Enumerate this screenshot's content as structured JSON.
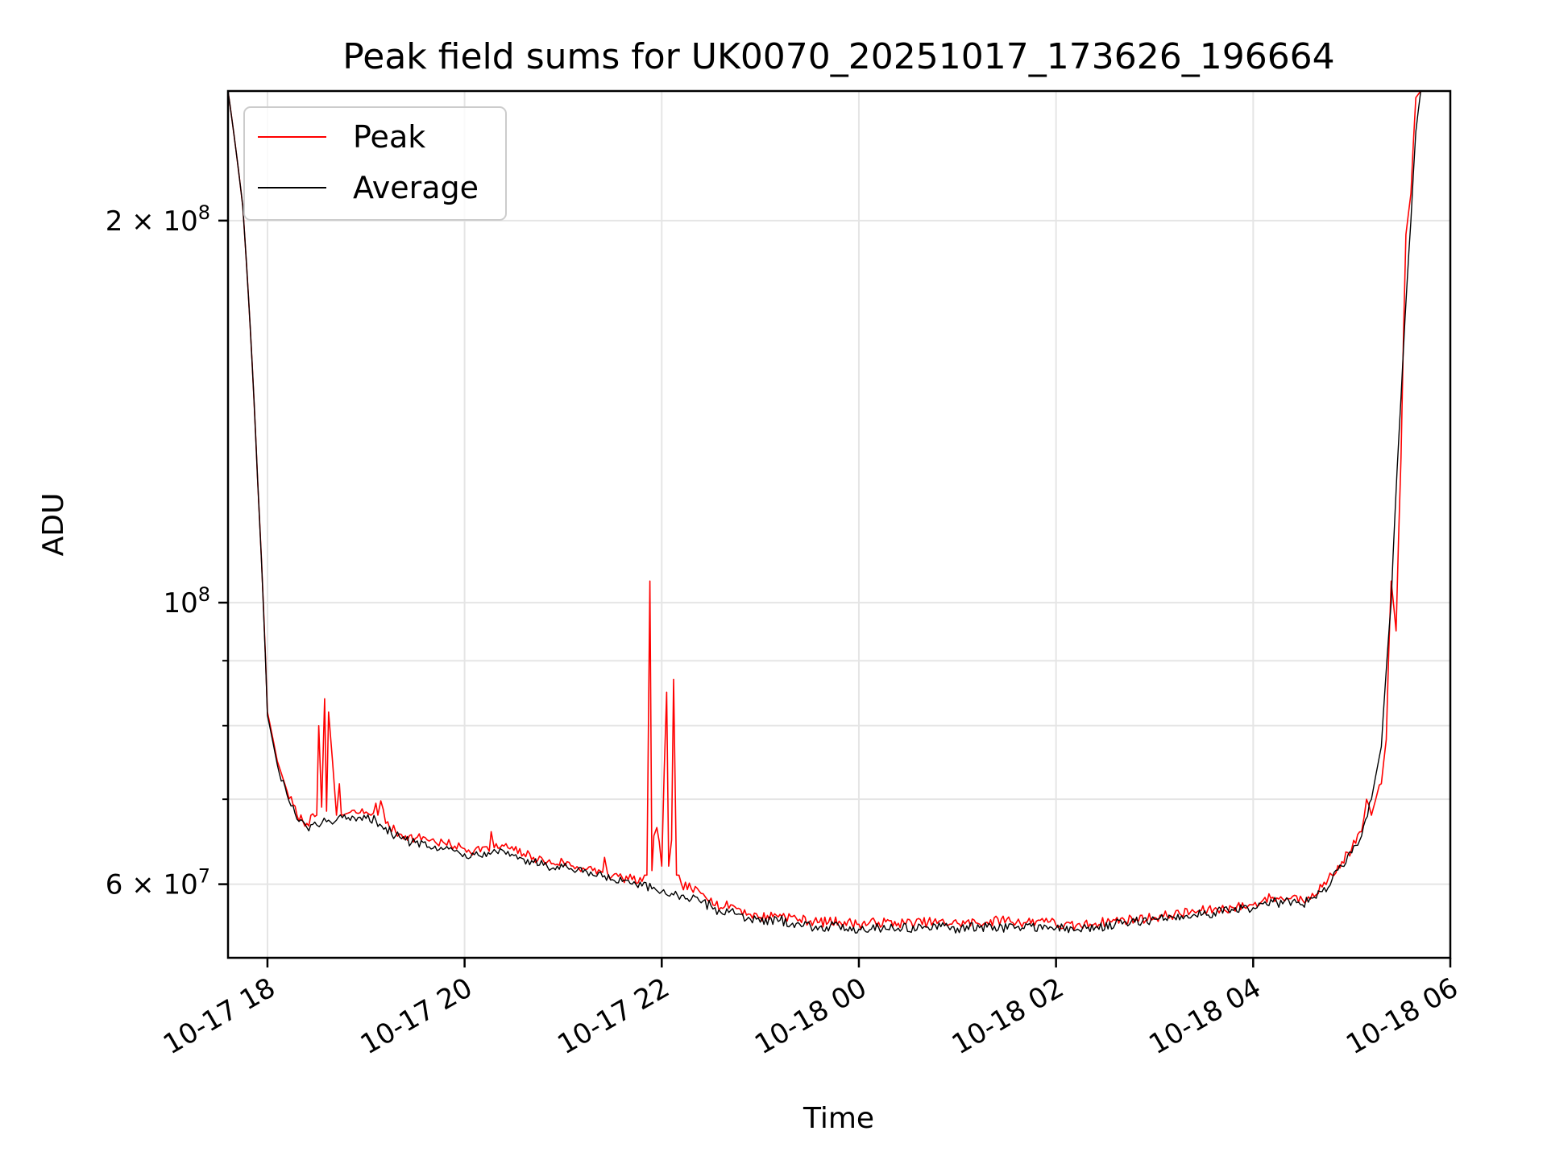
{
  "chart_data": {
    "type": "line",
    "title": "Peak field sums for UK0070_20251017_173626_196664",
    "xlabel": "Time",
    "ylabel": "ADU",
    "x_unit": "hours since 10-17 00:00",
    "xlim": [
      17.6,
      30.0
    ],
    "ylim": [
      52500000,
      253000000
    ],
    "yscale": "log",
    "grid": true,
    "legend_position": "top-left",
    "x_ticks": [
      {
        "value": 18,
        "label": "10-17 18"
      },
      {
        "value": 20,
        "label": "10-17 20"
      },
      {
        "value": 22,
        "label": "10-17 22"
      },
      {
        "value": 24,
        "label": "10-18 00"
      },
      {
        "value": 26,
        "label": "10-18 02"
      },
      {
        "value": 28,
        "label": "10-18 04"
      },
      {
        "value": 30,
        "label": "10-18 06"
      }
    ],
    "y_major_ticks": [
      {
        "value": 60000000,
        "mantissa": "6",
        "exponent": "7"
      },
      {
        "value": 100000000,
        "mantissa": "",
        "exponent": "8"
      },
      {
        "value": 200000000,
        "mantissa": "2",
        "exponent": "8"
      }
    ],
    "y_minor_ticks": [
      70000000,
      80000000,
      90000000
    ],
    "series": [
      {
        "name": "Peak",
        "color": "#ff0000",
        "x": [
          17.6,
          17.75,
          17.9,
          18.0,
          18.1,
          18.2,
          18.3,
          18.4,
          18.5,
          18.52,
          18.55,
          18.58,
          18.6,
          18.62,
          18.7,
          18.73,
          18.75,
          18.8,
          18.9,
          19.0,
          19.05,
          19.1,
          19.12,
          19.15,
          19.2,
          19.3,
          19.4,
          19.5,
          19.6,
          19.7,
          19.8,
          19.9,
          20.0,
          20.1,
          20.2,
          20.25,
          20.27,
          20.3,
          20.4,
          20.5,
          20.6,
          20.7,
          20.8,
          20.9,
          21.0,
          21.1,
          21.2,
          21.3,
          21.4,
          21.42,
          21.45,
          21.5,
          21.6,
          21.7,
          21.8,
          21.85,
          21.88,
          21.9,
          21.92,
          21.95,
          22.0,
          22.05,
          22.07,
          22.1,
          22.12,
          22.15,
          22.2,
          22.3,
          22.4,
          22.5,
          22.6,
          22.7,
          22.8,
          22.9,
          23.0,
          23.2,
          23.4,
          23.6,
          23.8,
          24.0,
          24.2,
          24.4,
          24.7,
          25.0,
          25.3,
          25.5,
          25.6,
          25.8,
          25.9,
          26.0,
          26.2,
          26.4,
          26.6,
          26.8,
          27.0,
          27.2,
          27.4,
          27.6,
          27.8,
          28.0,
          28.1,
          28.2,
          28.3,
          28.4,
          28.5,
          28.6,
          28.7,
          28.8,
          28.9,
          29.0,
          29.1,
          29.15,
          29.2,
          29.3,
          29.35,
          29.4,
          29.45,
          29.5,
          29.55,
          29.6,
          29.65,
          29.7,
          29.8,
          29.9,
          30.0
        ],
        "y": [
          253000000,
          205000000,
          125000000,
          82000000,
          75000000,
          71000000,
          68000000,
          67000000,
          68000000,
          80000000,
          69000000,
          84000000,
          68500000,
          82000000,
          68000000,
          72000000,
          68000000,
          68200000,
          68300000,
          68400000,
          68000000,
          69500000,
          68000000,
          69800000,
          67000000,
          66000000,
          65500000,
          65200000,
          65300000,
          64800000,
          64600000,
          64300000,
          64000000,
          63800000,
          64200000,
          63700000,
          66000000,
          64100000,
          64300000,
          63800000,
          63400000,
          63000000,
          62600000,
          62300000,
          62500000,
          62000000,
          61800000,
          61500000,
          61300000,
          63000000,
          61200000,
          60900000,
          60700000,
          60500000,
          60300000,
          61000000,
          104000000,
          61500000,
          65500000,
          66500000,
          62000000,
          85000000,
          62000000,
          65000000,
          87000000,
          61000000,
          60000000,
          59500000,
          59000000,
          58500000,
          57500000,
          57800000,
          57300000,
          56800000,
          56500000,
          56800000,
          56300000,
          56000000,
          56100000,
          55800000,
          56000000,
          55900000,
          56000000,
          55900000,
          56000000,
          56300000,
          56000000,
          56100000,
          56400000,
          55700000,
          55600000,
          55900000,
          56200000,
          56300000,
          56500000,
          56800000,
          57100000,
          57300000,
          57500000,
          57800000,
          58300000,
          58600000,
          58400000,
          58700000,
          58300000,
          59000000,
          59700000,
          61000000,
          62500000,
          64000000,
          66000000,
          70000000,
          68000000,
          72000000,
          78000000,
          104000000,
          95000000,
          130000000,
          195000000,
          210000000,
          250000000,
          253000000,
          253000000,
          253000000,
          253000000
        ]
      },
      {
        "name": "Average",
        "color": "#000000",
        "x": [
          17.6,
          17.75,
          17.9,
          18.0,
          18.1,
          18.2,
          18.3,
          18.4,
          18.5,
          18.55,
          18.6,
          18.7,
          18.8,
          18.9,
          19.0,
          19.1,
          19.2,
          19.3,
          19.4,
          19.5,
          19.6,
          19.7,
          19.8,
          19.9,
          20.0,
          20.1,
          20.2,
          20.3,
          20.4,
          20.5,
          20.6,
          20.7,
          20.8,
          20.9,
          21.0,
          21.1,
          21.2,
          21.3,
          21.4,
          21.5,
          21.6,
          21.7,
          21.8,
          21.9,
          22.0,
          22.1,
          22.2,
          22.3,
          22.4,
          22.5,
          22.6,
          22.7,
          22.8,
          22.9,
          23.0,
          23.2,
          23.4,
          23.6,
          23.8,
          24.0,
          24.2,
          24.4,
          24.7,
          25.0,
          25.3,
          25.6,
          25.9,
          26.0,
          26.2,
          26.4,
          26.6,
          26.8,
          27.0,
          27.2,
          27.4,
          27.6,
          27.8,
          28.0,
          28.1,
          28.2,
          28.3,
          28.4,
          28.5,
          28.6,
          28.7,
          28.8,
          28.9,
          29.0,
          29.1,
          29.2,
          29.3,
          29.4,
          29.5,
          29.6,
          29.65,
          29.7,
          29.8,
          29.9,
          30.0
        ],
        "y": [
          253000000,
          205000000,
          125000000,
          81500000,
          74500000,
          70500000,
          67500000,
          66500000,
          66800000,
          67000000,
          67200000,
          67400000,
          67500000,
          67300000,
          67600000,
          67400000,
          66500000,
          65500000,
          65000000,
          64700000,
          64800000,
          64300000,
          64000000,
          63700000,
          63400000,
          63300000,
          63600000,
          63900000,
          63700000,
          63200000,
          62800000,
          62400000,
          62100000,
          61800000,
          61900000,
          61500000,
          61300000,
          61000000,
          60800000,
          60500000,
          60300000,
          60000000,
          59800000,
          59500000,
          59200000,
          59000000,
          58800000,
          58400000,
          58000000,
          57700000,
          57000000,
          57200000,
          56800000,
          56300000,
          56000000,
          56200000,
          55800000,
          55500000,
          55600000,
          55300000,
          55500000,
          55400000,
          55500000,
          55400000,
          55500000,
          55500000,
          55600000,
          55400000,
          55200000,
          55500000,
          55800000,
          56000000,
          56300000,
          56500000,
          56800000,
          57000000,
          57200000,
          57500000,
          57900000,
          58100000,
          57900000,
          58200000,
          57800000,
          58500000,
          59200000,
          60500000,
          62000000,
          63500000,
          65500000,
          70000000,
          77000000,
          100000000,
          145000000,
          200000000,
          235000000,
          253000000,
          253000000,
          253000000,
          253000000
        ]
      }
    ]
  }
}
